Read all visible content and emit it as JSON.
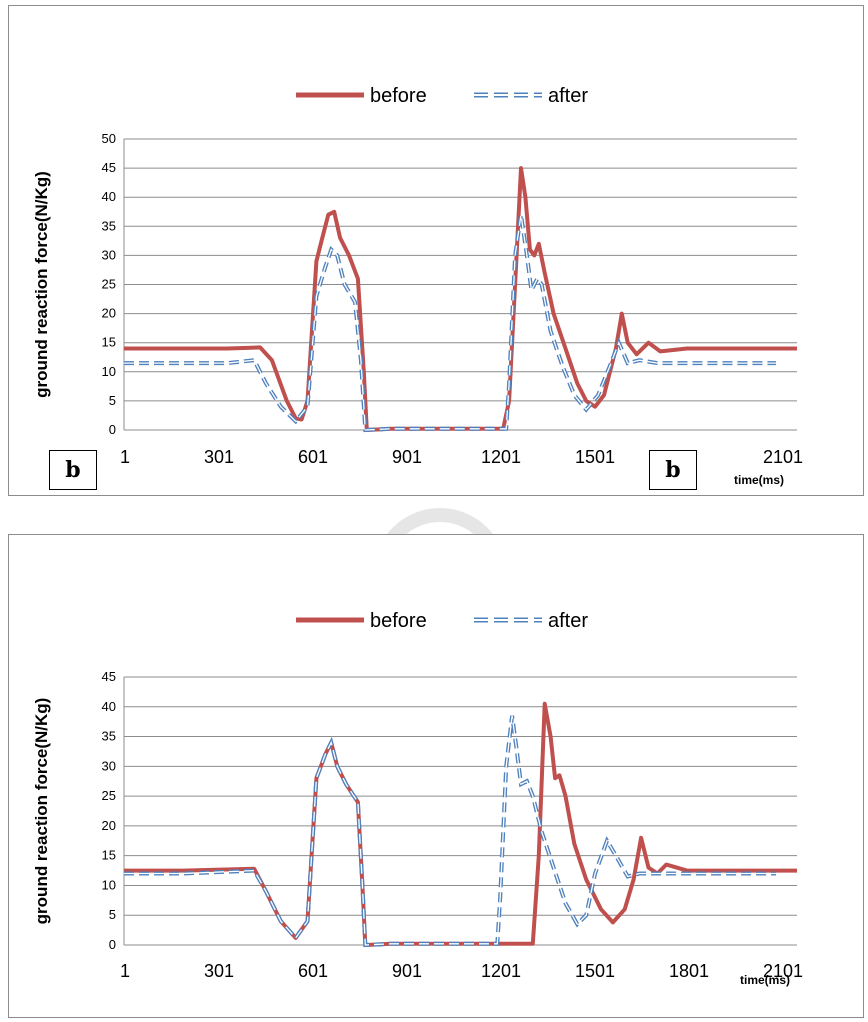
{
  "colors": {
    "before": "#c0504d",
    "after": "#4f81bd",
    "grid": "#8c8c8c"
  },
  "chart_data": [
    {
      "type": "line",
      "xlabel": "time(ms)",
      "ylabel": "ground reaction force(N/Kg)",
      "ylim": [
        0,
        50
      ],
      "yticks": [
        0,
        5,
        10,
        15,
        20,
        25,
        30,
        35,
        40,
        45,
        50
      ],
      "xlim": [
        1,
        2271
      ],
      "xticks": [
        "1",
        "301",
        "601",
        "901",
        "1201",
        "1501",
        "1",
        "2101"
      ],
      "grid": true,
      "legend": "top-center",
      "corner_labels": [
        "b",
        "b"
      ],
      "series": [
        {
          "name": "before",
          "style": "solid",
          "points": [
            [
              1,
              14
            ],
            [
              200,
              14
            ],
            [
              350,
              14
            ],
            [
              460,
              14.2
            ],
            [
              500,
              12
            ],
            [
              550,
              5
            ],
            [
              580,
              2
            ],
            [
              600,
              1.8
            ],
            [
              620,
              5
            ],
            [
              650,
              29
            ],
            [
              670,
              33
            ],
            [
              690,
              37
            ],
            [
              710,
              37.5
            ],
            [
              730,
              33
            ],
            [
              760,
              30
            ],
            [
              790,
              26
            ],
            [
              810,
              10
            ],
            [
              820,
              0
            ],
            [
              900,
              0.2
            ],
            [
              1100,
              0.2
            ],
            [
              1280,
              0.2
            ],
            [
              1300,
              5
            ],
            [
              1320,
              25
            ],
            [
              1340,
              45
            ],
            [
              1355,
              40
            ],
            [
              1370,
              31
            ],
            [
              1385,
              30
            ],
            [
              1400,
              32
            ],
            [
              1420,
              27
            ],
            [
              1450,
              20
            ],
            [
              1490,
              14
            ],
            [
              1530,
              8
            ],
            [
              1560,
              5
            ],
            [
              1590,
              4
            ],
            [
              1620,
              6
            ],
            [
              1660,
              14
            ],
            [
              1680,
              20
            ],
            [
              1700,
              15
            ],
            [
              1730,
              13
            ],
            [
              1770,
              15
            ],
            [
              1810,
              13.5
            ],
            [
              1900,
              14
            ],
            [
              2100,
              14
            ],
            [
              2271,
              14
            ]
          ]
        },
        {
          "name": "after",
          "style": "dashed",
          "points": [
            [
              1,
              11.5
            ],
            [
              200,
              11.5
            ],
            [
              350,
              11.5
            ],
            [
              440,
              12
            ],
            [
              480,
              8
            ],
            [
              530,
              4
            ],
            [
              580,
              1.5
            ],
            [
              620,
              4
            ],
            [
              650,
              23
            ],
            [
              680,
              28
            ],
            [
              700,
              31
            ],
            [
              720,
              30
            ],
            [
              745,
              25
            ],
            [
              780,
              22
            ],
            [
              800,
              12
            ],
            [
              815,
              0
            ],
            [
              900,
              0.2
            ],
            [
              1100,
              0.2
            ],
            [
              1290,
              0.2
            ],
            [
              1300,
              8
            ],
            [
              1320,
              30
            ],
            [
              1340,
              37
            ],
            [
              1360,
              30
            ],
            [
              1375,
              24
            ],
            [
              1395,
              26
            ],
            [
              1410,
              25
            ],
            [
              1440,
              17
            ],
            [
              1480,
              11
            ],
            [
              1520,
              6
            ],
            [
              1560,
              3.5
            ],
            [
              1600,
              6
            ],
            [
              1640,
              11
            ],
            [
              1670,
              15
            ],
            [
              1700,
              11.5
            ],
            [
              1740,
              12
            ],
            [
              1800,
              11.5
            ],
            [
              2000,
              11.5
            ],
            [
              2200,
              11.5
            ]
          ]
        }
      ]
    },
    {
      "type": "line",
      "xlabel": "time(ms)",
      "ylabel": "ground reaction force(N/Kg)",
      "ylim": [
        0,
        45
      ],
      "yticks": [
        0,
        5,
        10,
        15,
        20,
        25,
        30,
        35,
        40,
        45
      ],
      "xlim": [
        1,
        2271
      ],
      "xticks": [
        "1",
        "301",
        "601",
        "901",
        "1201",
        "1501",
        "1801",
        "2101"
      ],
      "grid": true,
      "legend": "top-center",
      "series": [
        {
          "name": "before",
          "style": "solid",
          "points": [
            [
              1,
              12.5
            ],
            [
              200,
              12.5
            ],
            [
              440,
              12.8
            ],
            [
              480,
              9
            ],
            [
              530,
              4
            ],
            [
              580,
              1.2
            ],
            [
              620,
              4
            ],
            [
              650,
              28
            ],
            [
              680,
              32
            ],
            [
              700,
              34
            ],
            [
              720,
              30
            ],
            [
              750,
              27
            ],
            [
              790,
              24
            ],
            [
              805,
              10
            ],
            [
              815,
              0
            ],
            [
              900,
              0.2
            ],
            [
              1200,
              0.2
            ],
            [
              1380,
              0.2
            ],
            [
              1400,
              15
            ],
            [
              1420,
              40.5
            ],
            [
              1440,
              35
            ],
            [
              1455,
              28
            ],
            [
              1470,
              28.5
            ],
            [
              1490,
              25
            ],
            [
              1520,
              17
            ],
            [
              1560,
              11
            ],
            [
              1610,
              6
            ],
            [
              1650,
              3.8
            ],
            [
              1690,
              6
            ],
            [
              1720,
              11
            ],
            [
              1745,
              18
            ],
            [
              1770,
              13
            ],
            [
              1800,
              12
            ],
            [
              1830,
              13.5
            ],
            [
              1900,
              12.5
            ],
            [
              2100,
              12.5
            ],
            [
              2271,
              12.5
            ]
          ]
        },
        {
          "name": "after",
          "style": "dashed",
          "points": [
            [
              1,
              12
            ],
            [
              200,
              12
            ],
            [
              440,
              12.5
            ],
            [
              480,
              9
            ],
            [
              530,
              4
            ],
            [
              580,
              1.2
            ],
            [
              620,
              4
            ],
            [
              650,
              28
            ],
            [
              680,
              32
            ],
            [
              700,
              34
            ],
            [
              720,
              30
            ],
            [
              750,
              27
            ],
            [
              790,
              24
            ],
            [
              805,
              10
            ],
            [
              815,
              0
            ],
            [
              900,
              0.2
            ],
            [
              1200,
              0.2
            ],
            [
              1260,
              0.2
            ],
            [
              1270,
              8
            ],
            [
              1290,
              30
            ],
            [
              1310,
              38.5
            ],
            [
              1325,
              33
            ],
            [
              1340,
              27
            ],
            [
              1360,
              27.5
            ],
            [
              1380,
              25
            ],
            [
              1410,
              19
            ],
            [
              1450,
              13
            ],
            [
              1490,
              7
            ],
            [
              1530,
              3.5
            ],
            [
              1560,
              5
            ],
            [
              1590,
              12
            ],
            [
              1630,
              17.5
            ],
            [
              1660,
              15
            ],
            [
              1700,
              11.5
            ],
            [
              1740,
              12
            ],
            [
              1800,
              12
            ],
            [
              2000,
              12
            ],
            [
              2200,
              12
            ]
          ]
        }
      ]
    }
  ]
}
